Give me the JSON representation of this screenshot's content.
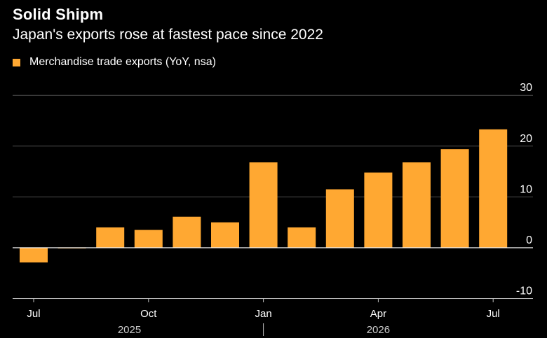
{
  "header": {
    "title": "Solid Shipm",
    "subtitle": "Japan's exports rose at fastest pace since 2022"
  },
  "legend": {
    "label": "Merchandise trade exports (YoY, nsa)"
  },
  "colors": {
    "background": "#000000",
    "bar": "#ffa832",
    "grid": "#4d4d4d",
    "zero_line": "#ffffff",
    "axis": "#bfbfbf",
    "text": "#ffffff",
    "muted_text": "#cccccc"
  },
  "chart_data": {
    "type": "bar",
    "title": "Solid Shipm",
    "subtitle": "Japan's exports rose at fastest pace since 2022",
    "series": [
      {
        "name": "Merchandise trade exports (YoY, nsa)",
        "values": [
          -2.9,
          -0.1,
          4.0,
          3.5,
          6.1,
          5.0,
          16.8,
          4.0,
          11.5,
          14.8,
          16.8,
          19.4,
          23.3
        ]
      }
    ],
    "categories": [
      "2025-07",
      "2025-08",
      "2025-09",
      "2025-10",
      "2025-11",
      "2025-12",
      "2026-01",
      "2026-02",
      "2026-03",
      "2026-04",
      "2026-05",
      "2026-06",
      "2026-07"
    ],
    "x_tick_labels": [
      {
        "category": "2025-07",
        "label": "Jul"
      },
      {
        "category": "2025-10",
        "label": "Oct"
      },
      {
        "category": "2026-01",
        "label": "Jan"
      },
      {
        "category": "2026-04",
        "label": "Apr"
      },
      {
        "category": "2026-07",
        "label": "Jul"
      }
    ],
    "year_labels": [
      {
        "label": "2025",
        "from": "2025-07",
        "to": "2025-12"
      },
      {
        "label": "2026",
        "from": "2026-01",
        "to": "2026-07"
      }
    ],
    "y_ticks": [
      -10,
      0,
      10,
      20,
      30
    ],
    "ylim": [
      -10.5,
      31
    ],
    "y_axis_side": "right",
    "grid": true,
    "legend_position": "top-left",
    "xlabel": "",
    "ylabel": ""
  }
}
